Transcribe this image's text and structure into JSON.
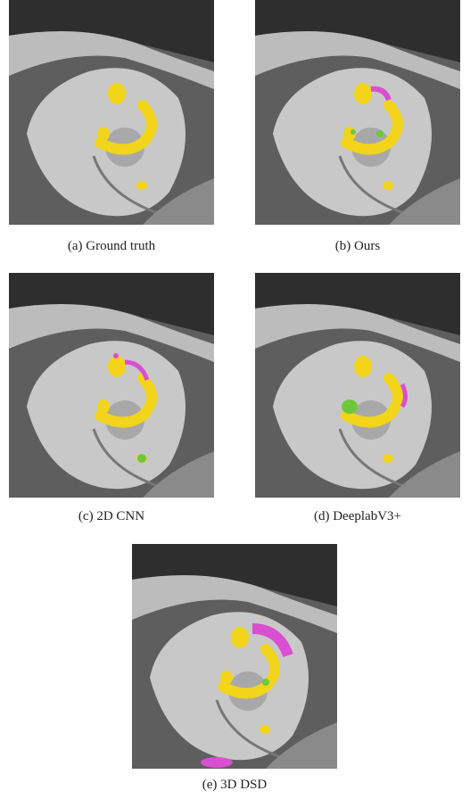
{
  "figure": {
    "panels": [
      {
        "caption": "(a) Ground truth"
      },
      {
        "caption": "(b) Ours"
      },
      {
        "caption": "(c) 2D CNN"
      },
      {
        "caption": "(d) DeeplabV3+"
      },
      {
        "caption": "(e) 3D DSD"
      }
    ]
  }
}
